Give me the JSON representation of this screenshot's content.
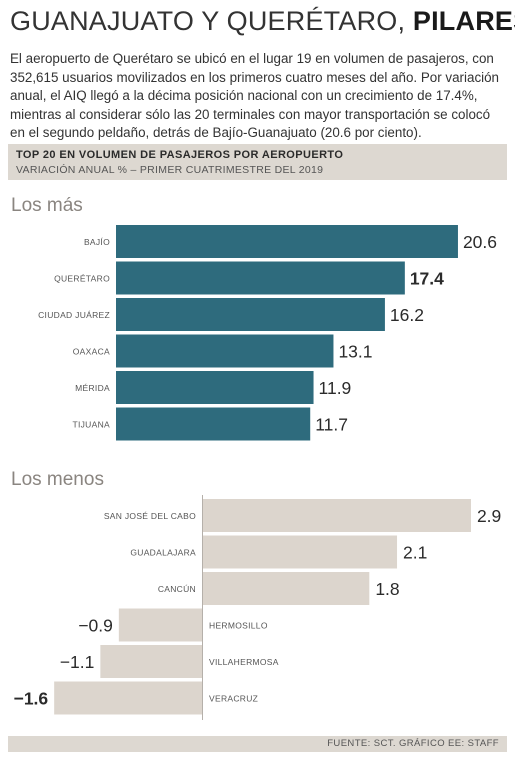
{
  "header": {
    "title_regular": "GUANAJUATO Y QUERÉTARO, ",
    "title_bold": "PILARES",
    "intro": "El aeropuerto de Querétaro se ubicó en el lugar 19 en volumen de pasajeros, con 352,615 usuarios movilizados en los primeros cuatro meses del año. Por variación anual, el AIQ llegó a la décima posición nacional con un crecimiento de 17.4%, mientras al considerar sólo las 20 terminales con mayor transportación se colocó en el segundo peldaño, detrás de Bajío-Guanajuato (20.6 por ciento)."
  },
  "chart_data": {
    "type": "bar",
    "orientation": "horizontal",
    "title": "TOP 20 EN VOLUMEN DE PASAJEROS POR AEROPUERTO",
    "subtitle": "VARIACIÓN ANUAL % – PRIMER CUATRIMESTRE DEL 2019",
    "groups": [
      {
        "name": "Los más",
        "color": "#2e6b7d",
        "categories": [
          "BAJÍO",
          "QUERÉTARO",
          "CIUDAD JUÁREZ",
          "OAXACA",
          "MÉRIDA",
          "TIJUANA"
        ],
        "values": [
          20.6,
          17.4,
          16.2,
          13.1,
          11.9,
          11.7
        ],
        "labels": [
          "20.6",
          "17.4",
          "16.2",
          "13.1",
          "11.9",
          "11.7"
        ],
        "bold": [
          false,
          true,
          false,
          false,
          false,
          false
        ]
      },
      {
        "name": "Los menos",
        "color": "#dcd5cd",
        "categories": [
          "SAN JOSÉ DEL CABO",
          "GUADALAJARA",
          "CANCÚN",
          "HERMOSILLO",
          "VILLAHERMOSA",
          "VERACRUZ"
        ],
        "values": [
          2.9,
          2.1,
          1.8,
          -0.9,
          -1.1,
          -1.6
        ],
        "labels": [
          "2.9",
          "2.1",
          "1.8",
          "−0.9",
          "−1.1",
          "−1.6"
        ],
        "bold": [
          false,
          false,
          false,
          false,
          false,
          true
        ]
      }
    ]
  },
  "footer": {
    "source": "FUENTE: SCT. GRÁFICO EE: STAFF"
  }
}
